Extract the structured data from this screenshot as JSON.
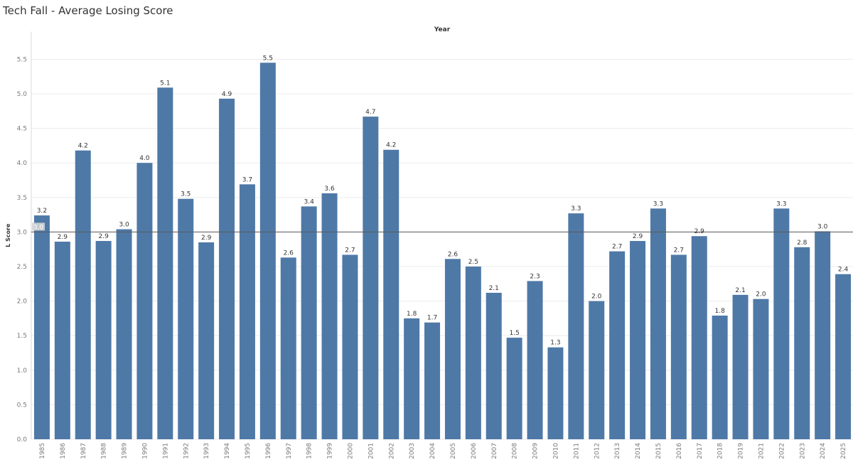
{
  "title": "Tech Fall - Average Losing Score",
  "chart_data": {
    "type": "bar",
    "title": "Tech Fall - Average Losing Score",
    "xlabel": "Year",
    "ylabel": "L Score",
    "ylim": [
      0,
      5.9
    ],
    "yticks": [
      "0.0",
      "0.5",
      "1.0",
      "1.5",
      "2.0",
      "2.5",
      "3.0",
      "3.5",
      "4.0",
      "4.5",
      "5.0",
      "5.5"
    ],
    "grid": true,
    "reference_line": {
      "value": 3.0,
      "label": "3.0"
    },
    "bar_color": "#4e79a7",
    "categories": [
      "1985",
      "1986",
      "1987",
      "1988",
      "1989",
      "1990",
      "1991",
      "1992",
      "1993",
      "1994",
      "1995",
      "1996",
      "1997",
      "1998",
      "1999",
      "2000",
      "2001",
      "2002",
      "2003",
      "2004",
      "2005",
      "2006",
      "2007",
      "2008",
      "2009",
      "2010",
      "2011",
      "2012",
      "2013",
      "2014",
      "2015",
      "2016",
      "2017",
      "2018",
      "2019",
      "2021",
      "2022",
      "2023",
      "2024",
      "2025"
    ],
    "values": [
      3.24,
      2.86,
      4.18,
      2.87,
      3.04,
      4.0,
      5.09,
      3.48,
      2.85,
      4.93,
      3.69,
      5.45,
      2.63,
      3.37,
      3.56,
      2.67,
      4.67,
      4.19,
      1.75,
      1.69,
      2.61,
      2.5,
      2.12,
      1.47,
      2.29,
      1.33,
      3.27,
      2.0,
      2.72,
      2.87,
      3.34,
      2.67,
      2.94,
      1.79,
      2.09,
      2.03,
      3.34,
      2.78,
      3.01,
      2.39
    ],
    "labels": [
      "3.2",
      "2.9",
      "4.2",
      "2.9",
      "3.0",
      "4.0",
      "5.1",
      "3.5",
      "2.9",
      "4.9",
      "3.7",
      "5.5",
      "2.6",
      "3.4",
      "3.6",
      "2.7",
      "4.7",
      "4.2",
      "1.8",
      "1.7",
      "2.6",
      "2.5",
      "2.1",
      "1.5",
      "2.3",
      "1.3",
      "3.3",
      "2.0",
      "2.7",
      "2.9",
      "3.3",
      "2.7",
      "2.9",
      "1.8",
      "2.1",
      "2.0",
      "3.3",
      "2.8",
      "3.0",
      "2.4"
    ]
  }
}
